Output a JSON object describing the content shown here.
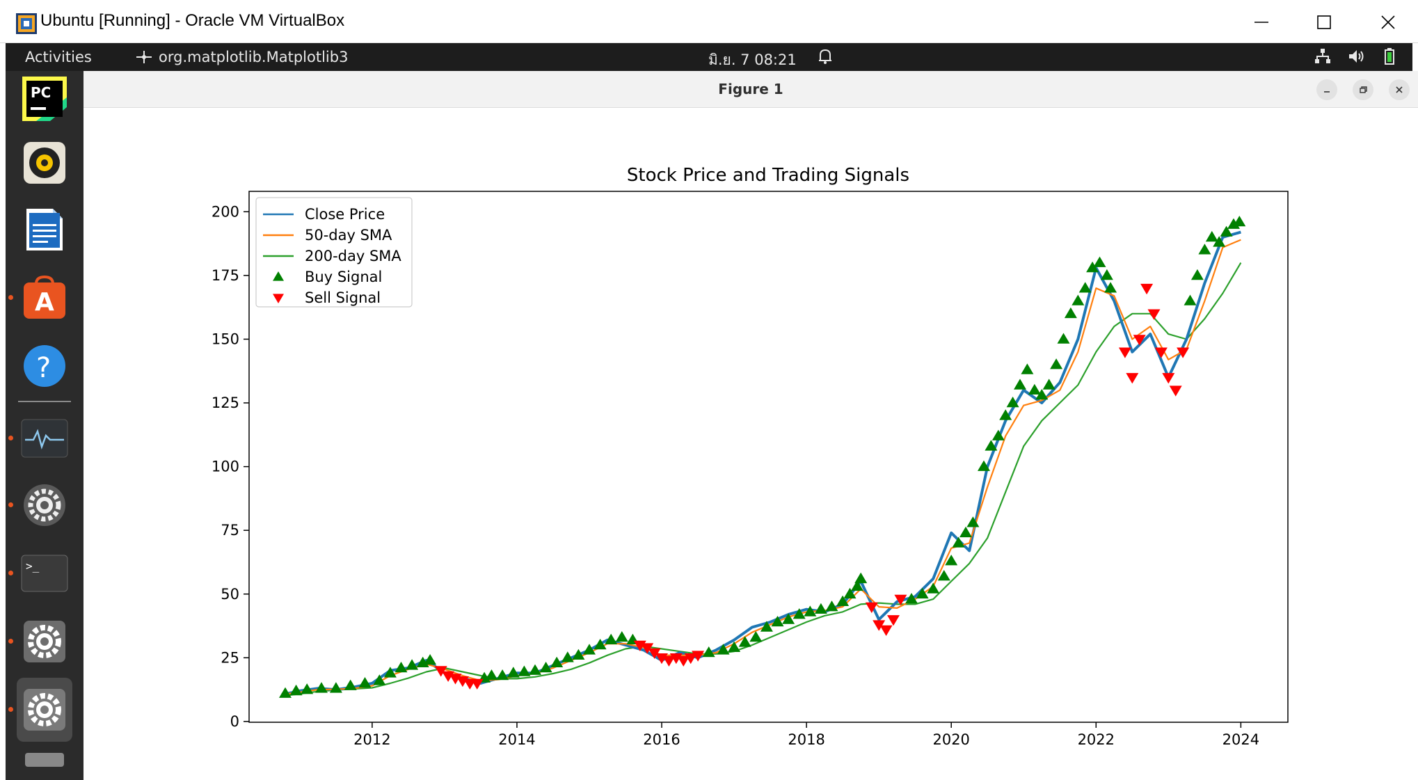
{
  "host_window": {
    "title": "Ubuntu [Running] - Oracle VM VirtualBox",
    "controls": [
      "minimize-icon",
      "maximize-icon",
      "close-icon"
    ]
  },
  "topbar": {
    "activities": "Activities",
    "app_name": "org.matplotlib.Matplotlib3",
    "clock": "มิ.ย. 7  08:21",
    "tray_icons": [
      "network-icon",
      "volume-icon",
      "battery-icon"
    ]
  },
  "dock": {
    "items": [
      {
        "name": "pycharm",
        "icon": "pycharm-icon"
      },
      {
        "name": "rhythmbox",
        "icon": "speaker-icon"
      },
      {
        "name": "libreoffice-writer",
        "icon": "writer-icon"
      },
      {
        "name": "ubuntu-software",
        "icon": "software-store-icon"
      },
      {
        "name": "help",
        "icon": "help-icon"
      },
      {
        "name": "system-monitor",
        "icon": "system-monitor-icon"
      },
      {
        "name": "settings-a",
        "icon": "gear-icon"
      },
      {
        "name": "terminal",
        "icon": "terminal-icon"
      },
      {
        "name": "settings-b",
        "icon": "gear-icon"
      },
      {
        "name": "settings-c",
        "icon": "gear-icon"
      }
    ]
  },
  "figure_window": {
    "title": "Figure 1",
    "controls": [
      "minimize-icon",
      "restore-icon",
      "close-icon"
    ]
  },
  "colors": {
    "close": "#1f77b4",
    "sma50": "#ff7f0e",
    "sma200": "#2ca02c",
    "buy": "#008000",
    "sell": "#ff0000"
  },
  "chart_data": {
    "type": "line",
    "title": "Stock Price and Trading Signals",
    "xlabel": "",
    "ylabel": "",
    "xlim": [
      2010.3,
      2024.65
    ],
    "ylim": [
      -0.3,
      208
    ],
    "x_ticks": [
      "2012",
      "2014",
      "2016",
      "2018",
      "2020",
      "2022",
      "2024"
    ],
    "y_ticks": [
      "0",
      "25",
      "50",
      "75",
      "100",
      "125",
      "150",
      "175",
      "200"
    ],
    "legend_position": "upper-left",
    "grid": false,
    "series": [
      {
        "name": "Close Price",
        "x": [
          2010.75,
          2011.0,
          2011.25,
          2011.5,
          2011.75,
          2012.0,
          2012.25,
          2012.5,
          2012.75,
          2013.0,
          2013.25,
          2013.5,
          2013.75,
          2014.0,
          2014.25,
          2014.5,
          2014.75,
          2015.0,
          2015.25,
          2015.5,
          2015.75,
          2016.0,
          2016.25,
          2016.5,
          2016.75,
          2017.0,
          2017.25,
          2017.5,
          2017.75,
          2018.0,
          2018.25,
          2018.5,
          2018.75,
          2019.0,
          2019.25,
          2019.5,
          2019.75,
          2020.0,
          2020.25,
          2020.5,
          2020.75,
          2021.0,
          2021.25,
          2021.5,
          2021.75,
          2022.0,
          2022.25,
          2022.5,
          2022.75,
          2023.0,
          2023.25,
          2023.5,
          2023.75,
          2024.0
        ],
        "values": [
          10.5,
          12,
          13,
          12.5,
          13.5,
          15,
          20,
          21,
          24,
          19,
          17,
          15,
          17,
          19,
          19,
          22,
          25,
          28,
          32,
          30,
          28,
          24,
          27,
          25,
          28,
          32,
          37,
          39,
          42,
          44,
          43,
          46,
          55,
          40,
          47,
          49,
          56,
          74,
          67,
          100,
          118,
          130,
          125,
          133,
          150,
          178,
          165,
          145,
          152,
          135,
          150,
          172,
          190,
          192
        ]
      },
      {
        "name": "50-day SMA",
        "x": [
          2010.75,
          2011.0,
          2011.25,
          2011.5,
          2011.75,
          2012.0,
          2012.25,
          2012.5,
          2012.75,
          2013.0,
          2013.25,
          2013.5,
          2013.75,
          2014.0,
          2014.25,
          2014.5,
          2014.75,
          2015.0,
          2015.25,
          2015.5,
          2015.75,
          2016.0,
          2016.25,
          2016.5,
          2016.75,
          2017.0,
          2017.25,
          2017.5,
          2017.75,
          2018.0,
          2018.25,
          2018.5,
          2018.75,
          2019.0,
          2019.25,
          2019.5,
          2019.75,
          2020.0,
          2020.25,
          2020.5,
          2020.75,
          2021.0,
          2021.25,
          2021.5,
          2021.75,
          2022.0,
          2022.25,
          2022.5,
          2022.75,
          2023.0,
          2023.25,
          2023.5,
          2023.75,
          2024.0
        ],
        "values": [
          10.5,
          11.5,
          12.5,
          12.6,
          13,
          14,
          18,
          20.5,
          22.5,
          20.5,
          18,
          16,
          16.5,
          18,
          18.8,
          21,
          24,
          27,
          30.5,
          30.5,
          29,
          26,
          26,
          26,
          27,
          30.5,
          35,
          38,
          41,
          43,
          43.5,
          45,
          52,
          45,
          44.5,
          48,
          53,
          68,
          70,
          92,
          112,
          124,
          126,
          130,
          145,
          170,
          167,
          150,
          155,
          142,
          146,
          165,
          186,
          189
        ]
      },
      {
        "name": "200-day SMA",
        "x": [
          2010.75,
          2011.0,
          2011.25,
          2011.5,
          2011.75,
          2012.0,
          2012.25,
          2012.5,
          2012.75,
          2013.0,
          2013.25,
          2013.5,
          2013.75,
          2014.0,
          2014.25,
          2014.5,
          2014.75,
          2015.0,
          2015.25,
          2015.5,
          2015.75,
          2016.0,
          2016.25,
          2016.5,
          2016.75,
          2017.0,
          2017.25,
          2017.5,
          2017.75,
          2018.0,
          2018.25,
          2018.5,
          2018.75,
          2019.0,
          2019.25,
          2019.5,
          2019.75,
          2020.0,
          2020.25,
          2020.5,
          2020.75,
          2021.0,
          2021.25,
          2021.5,
          2021.75,
          2022.0,
          2022.25,
          2022.5,
          2022.75,
          2023.0,
          2023.25,
          2023.5,
          2023.75,
          2024.0
        ],
        "values": [
          10,
          10.8,
          11.8,
          12.3,
          12.8,
          13.2,
          15,
          17,
          19.5,
          21,
          19.5,
          18,
          16.8,
          16.8,
          17.5,
          18.8,
          20.5,
          23,
          26,
          28.5,
          29.5,
          28.5,
          27.5,
          26.5,
          26.5,
          27.5,
          30,
          33,
          36,
          39,
          41.5,
          43,
          46,
          46.5,
          46,
          46,
          48,
          55,
          62,
          72,
          90,
          108,
          118,
          125,
          132,
          145,
          155,
          160,
          160,
          152,
          150,
          158,
          168,
          180
        ]
      },
      {
        "name": "Buy Signal",
        "marker": "triangle-up",
        "x": [
          2010.8,
          2010.95,
          2011.1,
          2011.3,
          2011.5,
          2011.7,
          2011.9,
          2012.1,
          2012.25,
          2012.4,
          2012.55,
          2012.7,
          2012.8,
          2013.55,
          2013.65,
          2013.8,
          2013.95,
          2014.1,
          2014.25,
          2014.4,
          2014.55,
          2014.7,
          2014.85,
          2015.0,
          2015.15,
          2015.3,
          2015.45,
          2015.6,
          2016.65,
          2016.85,
          2017.0,
          2017.15,
          2017.3,
          2017.45,
          2017.6,
          2017.75,
          2017.9,
          2018.05,
          2018.2,
          2018.35,
          2018.5,
          2018.6,
          2018.7,
          2018.75,
          2019.45,
          2019.6,
          2019.75,
          2019.9,
          2020.0,
          2020.1,
          2020.2,
          2020.3,
          2020.45,
          2020.55,
          2020.65,
          2020.75,
          2020.85,
          2020.95,
          2021.05,
          2021.15,
          2021.25,
          2021.35,
          2021.45,
          2021.55,
          2021.65,
          2021.75,
          2021.85,
          2021.95,
          2022.05,
          2022.15,
          2022.2,
          2023.3,
          2023.4,
          2023.5,
          2023.6,
          2023.7,
          2023.8,
          2023.9,
          2023.98
        ],
        "values": [
          11,
          12,
          12.5,
          13,
          13,
          14,
          15,
          16,
          19,
          21,
          22,
          23,
          24,
          17,
          18,
          18,
          19,
          19.5,
          20,
          21,
          23,
          25,
          26,
          28,
          30,
          32,
          33,
          32,
          27,
          28,
          29,
          31,
          33,
          37,
          39,
          40,
          42,
          43,
          44,
          45,
          47,
          50,
          53,
          56,
          48,
          50,
          52,
          57,
          63,
          70,
          74,
          78,
          100,
          108,
          112,
          120,
          125,
          132,
          138,
          130,
          128,
          132,
          140,
          150,
          160,
          165,
          170,
          178,
          180,
          175,
          170,
          165,
          175,
          185,
          190,
          188,
          192,
          195,
          196
        ]
      },
      {
        "name": "Sell Signal",
        "marker": "triangle-down",
        "x": [
          2012.95,
          2013.05,
          2013.15,
          2013.25,
          2013.35,
          2013.45,
          2015.7,
          2015.8,
          2015.9,
          2016.0,
          2016.1,
          2016.2,
          2016.3,
          2016.4,
          2016.5,
          2018.9,
          2019.0,
          2019.1,
          2019.2,
          2019.3,
          2022.4,
          2022.5,
          2022.6,
          2022.7,
          2022.8,
          2022.9,
          2023.0,
          2023.1,
          2023.2
        ],
        "values": [
          20,
          18,
          17,
          16,
          15,
          15,
          30,
          29,
          27,
          25,
          24,
          25,
          24,
          25,
          26,
          45,
          38,
          36,
          40,
          48,
          145,
          135,
          150,
          170,
          160,
          145,
          135,
          130,
          145
        ]
      }
    ]
  }
}
